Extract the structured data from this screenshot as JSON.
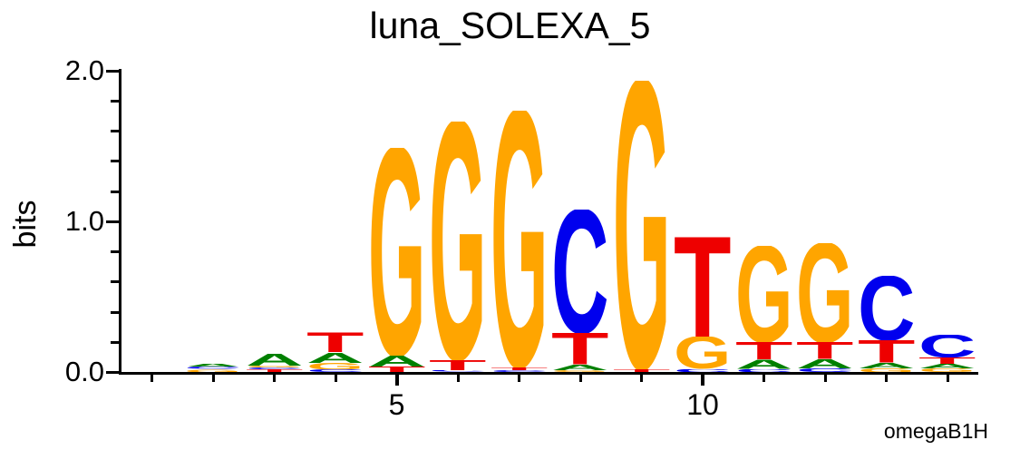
{
  "title": "luna_SOLEXA_5",
  "attribution": "omegaB1H",
  "chart_data": {
    "type": "sequence_logo",
    "title": "luna_SOLEXA_5",
    "xlabel": "",
    "ylabel": "bits",
    "ylim": [
      0,
      2.0
    ],
    "y_major_ticks": [
      0.0,
      1.0,
      2.0
    ],
    "y_minor_tick_step": 0.2,
    "num_positions": 14,
    "x_major_tick_positions": [
      5,
      10
    ],
    "attribution": "omegaB1H",
    "base_colors": {
      "A": "#008000",
      "C": "#0000EE",
      "G": "#FFA500",
      "T": "#EE0000"
    },
    "positions": [
      {
        "pos": 1,
        "letters": []
      },
      {
        "pos": 2,
        "letters": [
          {
            "base": "G",
            "bits": 0.02
          },
          {
            "base": "C",
            "bits": 0.015
          },
          {
            "base": "A",
            "bits": 0.021
          }
        ]
      },
      {
        "pos": 3,
        "letters": [
          {
            "base": "T",
            "bits": 0.018
          },
          {
            "base": "C",
            "bits": 0.012
          },
          {
            "base": "G",
            "bits": 0.012
          },
          {
            "base": "A",
            "bits": 0.078
          }
        ]
      },
      {
        "pos": 4,
        "letters": [
          {
            "base": "C",
            "bits": 0.018
          },
          {
            "base": "G",
            "bits": 0.045
          },
          {
            "base": "A",
            "bits": 0.066
          },
          {
            "base": "T",
            "bits": 0.133
          }
        ]
      },
      {
        "pos": 5,
        "letters": [
          {
            "base": "T",
            "bits": 0.036
          },
          {
            "base": "A",
            "bits": 0.072
          },
          {
            "base": "G",
            "bits": 1.38
          }
        ]
      },
      {
        "pos": 6,
        "letters": [
          {
            "base": "C",
            "bits": 0.01
          },
          {
            "base": "T",
            "bits": 0.07
          },
          {
            "base": "G",
            "bits": 1.58
          }
        ]
      },
      {
        "pos": 7,
        "letters": [
          {
            "base": "C",
            "bits": 0.012
          },
          {
            "base": "T",
            "bits": 0.018
          },
          {
            "base": "G",
            "bits": 1.7
          }
        ]
      },
      {
        "pos": 8,
        "letters": [
          {
            "base": "G",
            "bits": 0.012
          },
          {
            "base": "A",
            "bits": 0.035
          },
          {
            "base": "T",
            "bits": 0.21
          },
          {
            "base": "C",
            "bits": 0.82
          }
        ]
      },
      {
        "pos": 9,
        "letters": [
          {
            "base": "T",
            "bits": 0.018
          },
          {
            "base": "G",
            "bits": 1.91
          }
        ]
      },
      {
        "pos": 10,
        "letters": [
          {
            "base": "C",
            "bits": 0.021
          },
          {
            "base": "G",
            "bits": 0.211
          },
          {
            "base": "T",
            "bits": 0.667
          }
        ]
      },
      {
        "pos": 11,
        "letters": [
          {
            "base": "C",
            "bits": 0.021
          },
          {
            "base": "A",
            "bits": 0.063
          },
          {
            "base": "T",
            "bits": 0.115
          },
          {
            "base": "G",
            "bits": 0.64
          }
        ]
      },
      {
        "pos": 12,
        "letters": [
          {
            "base": "C",
            "bits": 0.024
          },
          {
            "base": "A",
            "bits": 0.06
          },
          {
            "base": "T",
            "bits": 0.112
          },
          {
            "base": "G",
            "bits": 0.66
          }
        ]
      },
      {
        "pos": 13,
        "letters": [
          {
            "base": "G",
            "bits": 0.027
          },
          {
            "base": "A",
            "bits": 0.036
          },
          {
            "base": "T",
            "bits": 0.148
          },
          {
            "base": "C",
            "bits": 0.428
          }
        ]
      },
      {
        "pos": 14,
        "letters": [
          {
            "base": "G",
            "bits": 0.024
          },
          {
            "base": "A",
            "bits": 0.03
          },
          {
            "base": "T",
            "bits": 0.042
          },
          {
            "base": "C",
            "bits": 0.15
          }
        ]
      }
    ]
  }
}
